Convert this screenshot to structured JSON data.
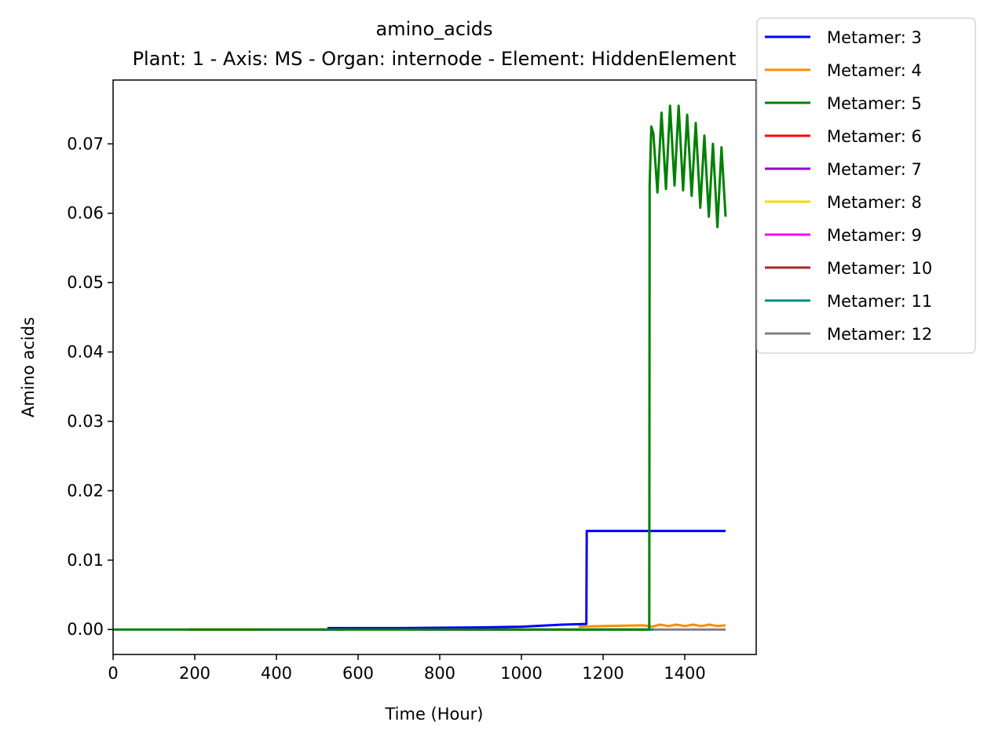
{
  "chart_data": {
    "type": "line",
    "title": "amino_acids",
    "subtitle": "Plant: 1 - Axis: MS - Organ: internode - Element: HiddenElement",
    "xlabel": "Time (Hour)",
    "ylabel": "Amino acids",
    "xlim": [
      0,
      1575
    ],
    "ylim": [
      -0.0036,
      0.0792
    ],
    "xticks": [
      0,
      200,
      400,
      600,
      800,
      1000,
      1200,
      1400
    ],
    "xtick_labels": [
      "0",
      "200",
      "400",
      "600",
      "800",
      "1000",
      "1200",
      "1400"
    ],
    "yticks": [
      0.0,
      0.01,
      0.02,
      0.03,
      0.04,
      0.05,
      0.06,
      0.07
    ],
    "ytick_labels": [
      "0.00",
      "0.01",
      "0.02",
      "0.03",
      "0.04",
      "0.05",
      "0.06",
      "0.07"
    ],
    "grid": false,
    "legend_position": "outside top-right",
    "series": [
      {
        "name": "Metamer: 3",
        "color": "#0000ff",
        "points": [
          [
            525,
            0.0002
          ],
          [
            700,
            0.0002
          ],
          [
            900,
            0.0003
          ],
          [
            1000,
            0.0004
          ],
          [
            1100,
            0.0007
          ],
          [
            1159,
            0.0008
          ],
          [
            1160,
            0.0142
          ],
          [
            1500,
            0.0142
          ]
        ]
      },
      {
        "name": "Metamer: 4",
        "color": "#ff8c00",
        "points": [
          [
            1140,
            0.0004
          ],
          [
            1200,
            0.0005
          ],
          [
            1300,
            0.0006
          ],
          [
            1320,
            0.0004
          ],
          [
            1340,
            0.0007
          ],
          [
            1360,
            0.0005
          ],
          [
            1380,
            0.0007
          ],
          [
            1400,
            0.0005
          ],
          [
            1420,
            0.0007
          ],
          [
            1440,
            0.0005
          ],
          [
            1460,
            0.0007
          ],
          [
            1480,
            0.0005
          ],
          [
            1500,
            0.0006
          ]
        ]
      },
      {
        "name": "Metamer: 5",
        "color": "#008000",
        "points": [
          [
            0,
            0.0
          ],
          [
            185,
            0.0
          ],
          [
            1313,
            0.0
          ],
          [
            1314,
            0.064
          ],
          [
            1318,
            0.0725
          ],
          [
            1323,
            0.0715
          ],
          [
            1333,
            0.063
          ],
          [
            1343,
            0.0745
          ],
          [
            1354,
            0.0635
          ],
          [
            1364,
            0.0755
          ],
          [
            1375,
            0.064
          ],
          [
            1385,
            0.0755
          ],
          [
            1396,
            0.0633
          ],
          [
            1406,
            0.0742
          ],
          [
            1417,
            0.0625
          ],
          [
            1427,
            0.073
          ],
          [
            1438,
            0.0608
          ],
          [
            1448,
            0.0712
          ],
          [
            1459,
            0.0595
          ],
          [
            1469,
            0.07
          ],
          [
            1480,
            0.058
          ],
          [
            1490,
            0.0695
          ],
          [
            1500,
            0.0595
          ]
        ]
      },
      {
        "name": "Metamer: 6",
        "color": "#ff0000",
        "points": [
          [
            185,
            0.0
          ],
          [
            375,
            0.0
          ]
        ]
      },
      {
        "name": "Metamer: 7",
        "color": "#9400d3",
        "points": [
          [
            375,
            0.0
          ],
          [
            565,
            0.0
          ]
        ]
      },
      {
        "name": "Metamer: 8",
        "color": "#ffd700",
        "points": [
          [
            565,
            0.0
          ],
          [
            755,
            0.0
          ]
        ]
      },
      {
        "name": "Metamer: 9",
        "color": "#ff00ff",
        "points": [
          [
            755,
            0.0
          ],
          [
            945,
            0.0
          ]
        ]
      },
      {
        "name": "Metamer: 10",
        "color": "#a52a2a",
        "points": [
          [
            945,
            0.0
          ],
          [
            1135,
            0.0
          ]
        ]
      },
      {
        "name": "Metamer: 11",
        "color": "#008b8b",
        "points": [
          [
            1135,
            0.0
          ],
          [
            1325,
            0.0
          ]
        ]
      },
      {
        "name": "Metamer: 12",
        "color": "#808080",
        "points": [
          [
            1325,
            0.0
          ],
          [
            1500,
            0.0
          ]
        ]
      }
    ]
  }
}
